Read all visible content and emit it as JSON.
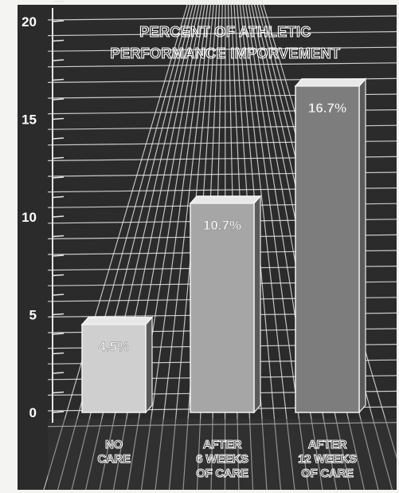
{
  "chart_data": {
    "type": "bar",
    "title_lines": [
      "PERCENT OF ATHLETIC",
      "PERFORMANCE IMPORVEMENT"
    ],
    "categories": [
      [
        "NO",
        "CARE"
      ],
      [
        "AFTER",
        "6 WEEKS",
        "OF CARE"
      ],
      [
        "AFTER",
        "12 WEEKS",
        "OF CARE"
      ]
    ],
    "values": [
      4.5,
      10.7,
      16.7
    ],
    "value_labels": [
      "4.5%",
      "10.7%",
      "16.7%"
    ],
    "ylim": [
      0,
      22
    ],
    "yticks": [
      "0",
      "5",
      "10",
      "15",
      "20"
    ],
    "ytick_values": [
      0,
      5,
      10,
      15,
      20
    ],
    "grid": true,
    "colors": {
      "background": "#2b2b2b",
      "grid": "#e6e6e6",
      "bar_front": [
        "#cfcfcf",
        "#a6a6a6",
        "#7d7d7d"
      ],
      "text": "#ffffff"
    }
  }
}
